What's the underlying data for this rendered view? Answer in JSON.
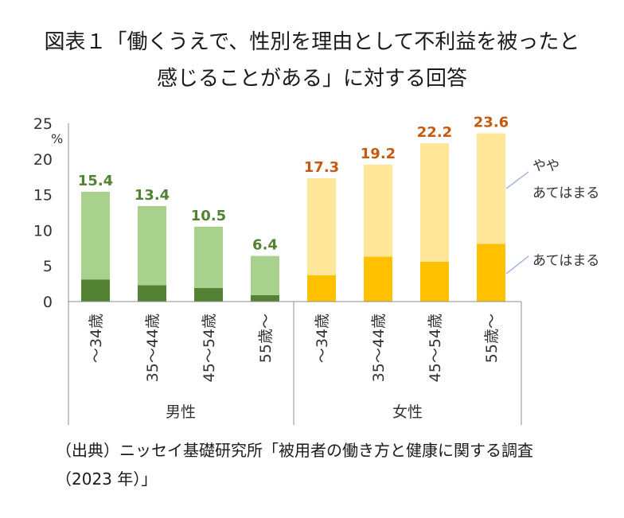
{
  "title": {
    "line1": "図表１「働くうえで、性別を理由として不利益を被ったと",
    "line2": "感じることがある」に対する回答"
  },
  "source": {
    "line1": "（出典）ニッセイ基礎研究所「被用者の働き方と健康に関する調査",
    "line2": "（2023 年）」"
  },
  "chart_data": {
    "type": "bar",
    "stacked": true,
    "ylabel": "%",
    "ylim": [
      0,
      25
    ],
    "yticks": [
      0,
      5,
      10,
      15,
      20,
      25
    ],
    "grid": false,
    "groups": [
      {
        "name": "男性",
        "categories": [
          "～34歳",
          "35～44歳",
          "45～54歳",
          "55歳～"
        ],
        "series": [
          {
            "name": "あてはまる",
            "values": [
              3.1,
              2.3,
              1.9,
              0.9
            ],
            "color": "#548235"
          },
          {
            "name": "やや あてはまる",
            "values": [
              12.3,
              11.1,
              8.6,
              5.5
            ],
            "color": "#a9d18e"
          }
        ],
        "totals": [
          15.4,
          13.4,
          10.5,
          6.4
        ],
        "total_color": "#548235"
      },
      {
        "name": "女性",
        "categories": [
          "～34歳",
          "35～44歳",
          "45～54歳",
          "55歳～"
        ],
        "series": [
          {
            "name": "あてはまる",
            "values": [
              3.7,
              6.3,
              5.6,
              8.1
            ],
            "color": "#ffc000"
          },
          {
            "name": "やや あてはまる",
            "values": [
              13.6,
              12.9,
              16.6,
              15.5
            ],
            "color": "#ffe699"
          }
        ],
        "totals": [
          17.3,
          19.2,
          22.2,
          23.6
        ],
        "total_color": "#c55a11"
      }
    ],
    "legend": {
      "placement": "right",
      "upper_label_line1": "やや",
      "upper_label_line2": "あてはまる",
      "lower_label": "あてはまる",
      "line_color": "#8faadc"
    }
  }
}
